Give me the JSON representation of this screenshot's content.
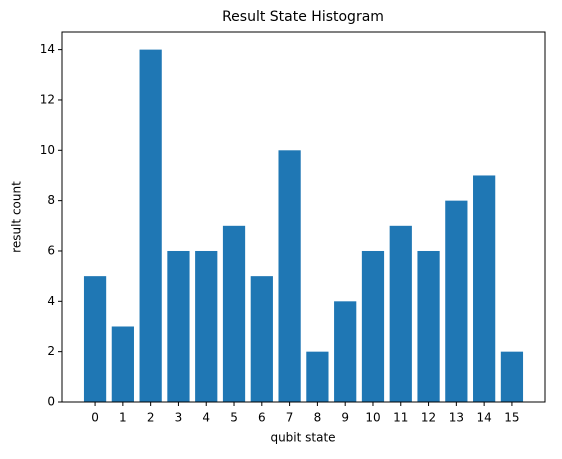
{
  "chart_data": {
    "type": "bar",
    "title": "Result State Histogram",
    "x_label": "qubit state",
    "y_label": "result count",
    "categories": [
      "0",
      "1",
      "2",
      "3",
      "4",
      "5",
      "6",
      "7",
      "8",
      "9",
      "10",
      "11",
      "12",
      "13",
      "14",
      "15"
    ],
    "values": [
      5,
      3,
      14,
      6,
      6,
      7,
      5,
      10,
      2,
      4,
      6,
      7,
      6,
      8,
      9,
      2
    ],
    "color": "#1f77b4",
    "ylim": [
      0,
      14.7
    ],
    "yticks": [
      0,
      2,
      4,
      6,
      8,
      10,
      12,
      14
    ],
    "grid": false
  }
}
